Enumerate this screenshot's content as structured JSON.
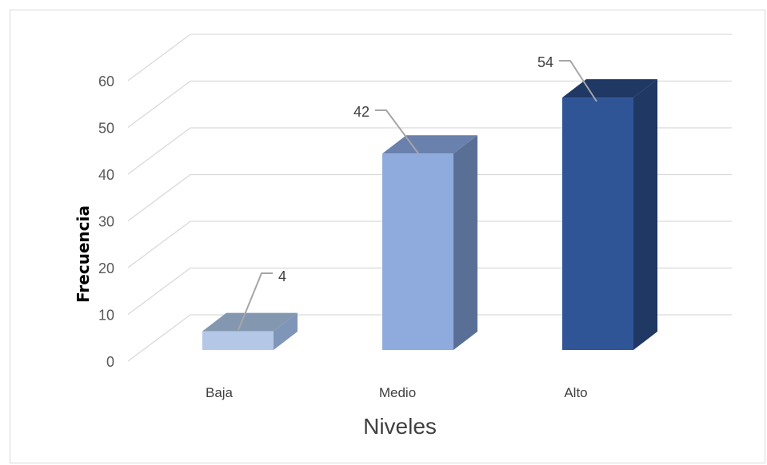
{
  "chart_data": {
    "type": "bar",
    "style": "3d-column",
    "categories": [
      "Baja",
      "Medio",
      "Alto"
    ],
    "values": [
      4,
      42,
      54
    ],
    "data_labels": [
      "4",
      "42",
      "54"
    ],
    "xlabel": "Niveles",
    "ylabel": "Frecuencia",
    "ylim": [
      0,
      60
    ],
    "yticks": [
      "0",
      "10",
      "20",
      "30",
      "40",
      "50",
      "60"
    ],
    "grid": true,
    "legend": "none",
    "colors": {
      "Baja": "#b4c7e7",
      "Medio": "#8faadc",
      "Alto": "#2f5597"
    }
  }
}
